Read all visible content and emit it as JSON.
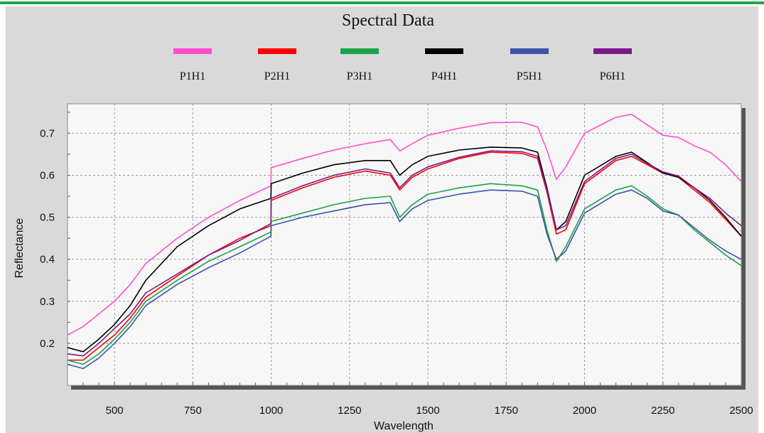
{
  "chart_data": {
    "type": "line",
    "title": "Spectral Data",
    "xlabel": "Wavelength",
    "ylabel": "Reflectance",
    "xlim": [
      350,
      2500
    ],
    "ylim": [
      0.1,
      0.77
    ],
    "xticks": [
      500,
      750,
      1000,
      1250,
      1500,
      1750,
      2000,
      2250,
      2500
    ],
    "yticks": [
      0.2,
      0.3,
      0.4,
      0.5,
      0.6,
      0.7
    ],
    "grid": true,
    "legend_position": "top",
    "x": [
      350,
      400,
      450,
      500,
      550,
      600,
      700,
      800,
      900,
      999,
      1000,
      1100,
      1200,
      1300,
      1380,
      1410,
      1450,
      1500,
      1600,
      1700,
      1800,
      1850,
      1880,
      1910,
      1940,
      2000,
      2100,
      2150,
      2200,
      2250,
      2300,
      2350,
      2400,
      2450,
      2500
    ],
    "series": [
      {
        "name": "P1H1",
        "color": "#ff4fd0",
        "values": [
          0.22,
          0.24,
          0.27,
          0.3,
          0.34,
          0.39,
          0.45,
          0.5,
          0.54,
          0.575,
          0.618,
          0.64,
          0.66,
          0.675,
          0.685,
          0.658,
          0.675,
          0.695,
          0.712,
          0.725,
          0.726,
          0.715,
          0.66,
          0.59,
          0.62,
          0.7,
          0.738,
          0.745,
          0.72,
          0.695,
          0.69,
          0.67,
          0.655,
          0.625,
          0.585
        ]
      },
      {
        "name": "P2H1",
        "color": "#ff0000",
        "values": [
          0.16,
          0.16,
          0.19,
          0.22,
          0.26,
          0.31,
          0.36,
          0.41,
          0.45,
          0.48,
          0.54,
          0.57,
          0.595,
          0.61,
          0.6,
          0.565,
          0.595,
          0.615,
          0.64,
          0.655,
          0.652,
          0.64,
          0.56,
          0.46,
          0.47,
          0.58,
          0.635,
          0.645,
          0.625,
          0.605,
          0.595,
          0.565,
          0.535,
          0.495,
          0.455
        ]
      },
      {
        "name": "P3H1",
        "color": "#1aa34a",
        "values": [
          0.16,
          0.15,
          0.175,
          0.21,
          0.25,
          0.3,
          0.35,
          0.395,
          0.43,
          0.465,
          0.49,
          0.51,
          0.53,
          0.545,
          0.55,
          0.5,
          0.53,
          0.555,
          0.57,
          0.58,
          0.575,
          0.565,
          0.47,
          0.395,
          0.43,
          0.52,
          0.565,
          0.575,
          0.55,
          0.52,
          0.505,
          0.47,
          0.44,
          0.41,
          0.385
        ]
      },
      {
        "name": "P4H1",
        "color": "#000000",
        "values": [
          0.19,
          0.18,
          0.21,
          0.245,
          0.29,
          0.35,
          0.43,
          0.48,
          0.52,
          0.545,
          0.58,
          0.605,
          0.625,
          0.635,
          0.635,
          0.6,
          0.625,
          0.645,
          0.66,
          0.667,
          0.665,
          0.655,
          0.57,
          0.47,
          0.49,
          0.6,
          0.645,
          0.655,
          0.63,
          0.605,
          0.595,
          0.57,
          0.54,
          0.5,
          0.455
        ]
      },
      {
        "name": "P5H1",
        "color": "#3a55a8",
        "values": [
          0.15,
          0.14,
          0.165,
          0.2,
          0.24,
          0.29,
          0.34,
          0.38,
          0.415,
          0.455,
          0.48,
          0.5,
          0.515,
          0.53,
          0.535,
          0.49,
          0.52,
          0.54,
          0.555,
          0.565,
          0.562,
          0.55,
          0.46,
          0.4,
          0.42,
          0.51,
          0.555,
          0.565,
          0.545,
          0.515,
          0.505,
          0.475,
          0.445,
          0.42,
          0.4
        ]
      },
      {
        "name": "P6H1",
        "color": "#7a1a8a",
        "values": [
          0.175,
          0.17,
          0.2,
          0.235,
          0.27,
          0.32,
          0.365,
          0.41,
          0.445,
          0.485,
          0.545,
          0.575,
          0.6,
          0.615,
          0.605,
          0.57,
          0.6,
          0.62,
          0.643,
          0.658,
          0.656,
          0.645,
          0.565,
          0.47,
          0.48,
          0.585,
          0.64,
          0.65,
          0.628,
          0.608,
          0.598,
          0.57,
          0.545,
          0.51,
          0.48
        ]
      }
    ]
  }
}
